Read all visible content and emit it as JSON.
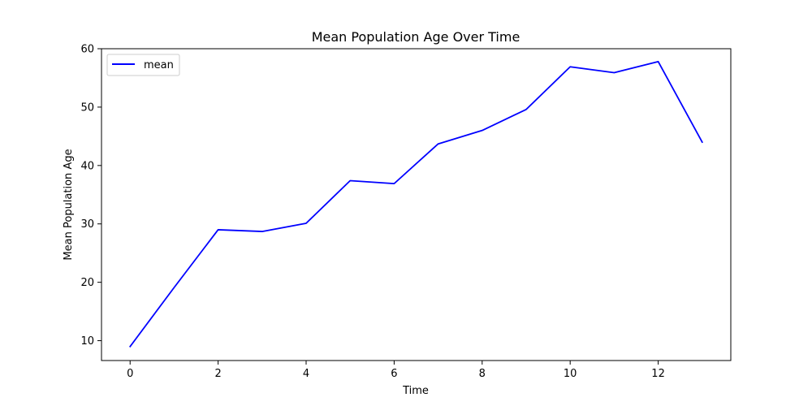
{
  "chart_data": {
    "type": "line",
    "title": "Mean Population Age Over Time",
    "xlabel": "Time",
    "ylabel": "Mean Population Age",
    "xlim": [
      -0.65,
      13.65
    ],
    "ylim": [
      6.6,
      60
    ],
    "x_ticks": [
      0,
      2,
      4,
      6,
      8,
      10,
      12
    ],
    "y_ticks": [
      10,
      20,
      30,
      40,
      50,
      60
    ],
    "x_tick_labels": [
      "0",
      "2",
      "4",
      "6",
      "8",
      "10",
      "12"
    ],
    "y_tick_labels": [
      "10",
      "20",
      "30",
      "40",
      "50",
      "60"
    ],
    "grid": false,
    "legend_position": "top-left",
    "series": [
      {
        "name": "mean",
        "color": "#0000ff",
        "x": [
          0,
          1,
          2,
          3,
          4,
          5,
          6,
          7,
          8,
          9,
          10,
          11,
          12,
          13
        ],
        "y": [
          9.0,
          19.1,
          29.0,
          28.7,
          30.1,
          37.4,
          36.9,
          43.7,
          46.0,
          49.6,
          56.9,
          55.9,
          57.8,
          44.0
        ]
      }
    ]
  }
}
